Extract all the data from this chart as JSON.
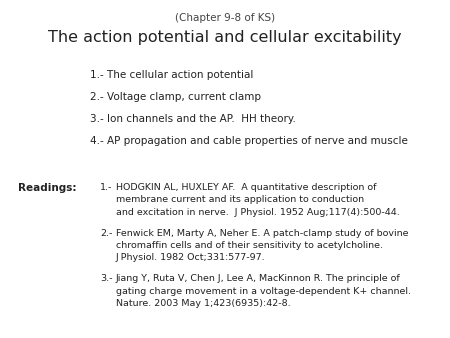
{
  "bg_color": "#ffffff",
  "chapter_header": "(Chapter 9-8 of KS)",
  "title": "The action potential and cellular excitability",
  "items": [
    "1.- The cellular action potential",
    "2.- Voltage clamp, current clamp",
    "3.- Ion channels and the AP.  HH theory.",
    "4.- AP propagation and cable properties of nerve and muscle"
  ],
  "readings_label": "Readings:",
  "readings": [
    {
      "num": "1.-",
      "lines": [
        "HODGKIN AL, HUXLEY AF.  A quantitative description of",
        "membrane current and its application to conduction",
        "and excitation in nerve.  J Physiol. 1952 Aug;117(4):500-44."
      ]
    },
    {
      "num": "2.-",
      "lines": [
        "Fenwick EM, Marty A, Neher E. A patch-clamp study of bovine",
        "chromaffin cells and of their sensitivity to acetylcholine.",
        "J Physiol. 1982 Oct;331:577-97."
      ]
    },
    {
      "num": "3.-",
      "lines": [
        "Jiang Y, Ruta V, Chen J, Lee A, MacKinnon R. The principle of",
        "gating charge movement in a voltage-dependent K+ channel.",
        "Nature. 2003 May 1;423(6935):42-8."
      ]
    }
  ],
  "chapter_fontsize": 7.5,
  "title_fontsize": 11.5,
  "item_fontsize": 7.5,
  "readings_label_fontsize": 7.5,
  "readings_fontsize": 6.8,
  "text_color": "#222222",
  "chapter_color": "#444444"
}
